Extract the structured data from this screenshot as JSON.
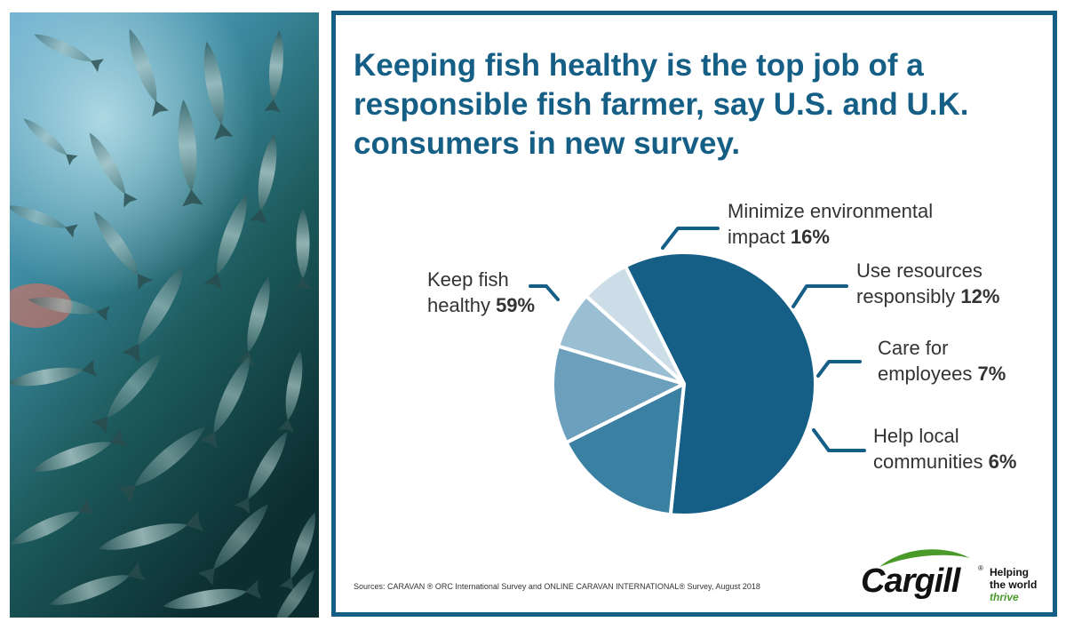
{
  "title": "Keeping fish healthy is the top job of a responsible fish farmer, say U.S. and U.K. consumers in new survey.",
  "chart_data": {
    "type": "pie",
    "title": "Keeping fish healthy is the top job of a responsible fish farmer, say U.S. and U.K. consumers in new survey.",
    "unit": "%",
    "slices": [
      {
        "key": "healthy",
        "label": "Keep fish healthy",
        "line1": "Keep fish",
        "line2": "healthy",
        "value": 59,
        "pct_text": "59%",
        "color": "#155f86"
      },
      {
        "key": "environment",
        "label": "Minimize environmental impact",
        "line1": "Minimize environmental",
        "line2": "impact",
        "value": 16,
        "pct_text": "16%",
        "color": "#3a80a2"
      },
      {
        "key": "resources",
        "label": "Use resources responsibly",
        "line1": "Use resources",
        "line2": "responsibly",
        "value": 12,
        "pct_text": "12%",
        "color": "#6b9fbb"
      },
      {
        "key": "employees",
        "label": "Care for employees",
        "line1": "Care for",
        "line2": "employees",
        "value": 7,
        "pct_text": "7%",
        "color": "#9bbfd2"
      },
      {
        "key": "communities",
        "label": "Help local communities",
        "line1": "Help local",
        "line2": "communities",
        "value": 6,
        "pct_text": "6%",
        "color": "#ccdde7"
      }
    ]
  },
  "source": "Sources: CARAVAN ® ORC International Survey and ONLINE CARAVAN INTERNATIONAL® Survey, August 2018",
  "logo": {
    "wordmark": "Cargill",
    "registered": "®",
    "tagline_line1": "Helping",
    "tagline_line2": "the world",
    "tagline_line3": "thrive",
    "brand_green": "#4a9a2a"
  },
  "colors": {
    "frame": "#155f86",
    "title": "#155f86",
    "leader": "#155f86"
  }
}
